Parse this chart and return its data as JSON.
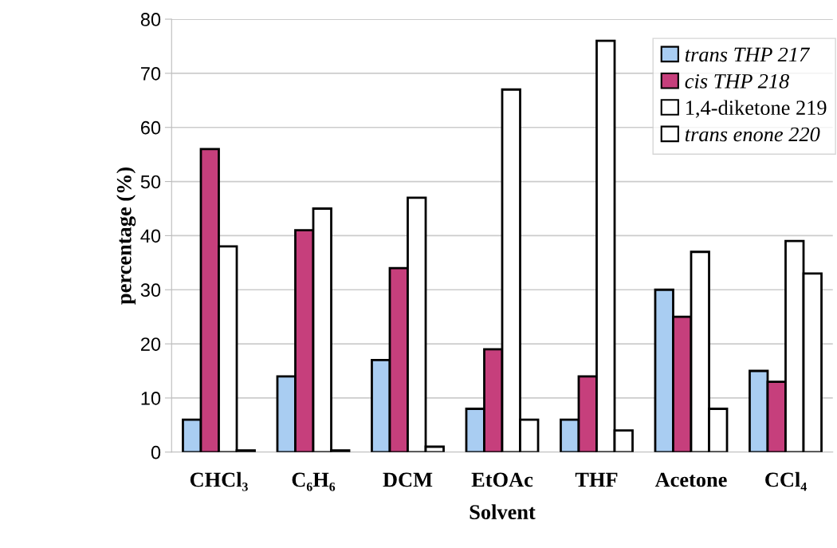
{
  "chart_data": {
    "type": "bar",
    "xlabel": "Solvent",
    "ylabel": "percentage (%)",
    "categories": [
      "CHCl₃",
      "C₆H₆",
      "DCM",
      "EtOAc",
      "THF",
      "Acetone",
      "CCl₄"
    ],
    "series": [
      {
        "name": "trans THP 217",
        "color": "#a9cdf2",
        "values": [
          6,
          14,
          17,
          8,
          6,
          30,
          15
        ]
      },
      {
        "name": "cis THP 218",
        "color": "#c63f7c",
        "values": [
          56,
          41,
          34,
          19,
          14,
          25,
          13
        ]
      },
      {
        "name": "1,4-diketone 219",
        "color": "#ffffff",
        "values": [
          38,
          45,
          47,
          67,
          76,
          37,
          39
        ]
      },
      {
        "name": "trans enone 220",
        "color": "#ffffff",
        "values": [
          0.3,
          0.3,
          1,
          6,
          4,
          8,
          33
        ]
      }
    ],
    "ylim": [
      0,
      80
    ],
    "yticks": [
      0,
      10,
      20,
      30,
      40,
      50,
      60,
      70,
      80
    ],
    "grid": "y",
    "legend": "top right"
  }
}
